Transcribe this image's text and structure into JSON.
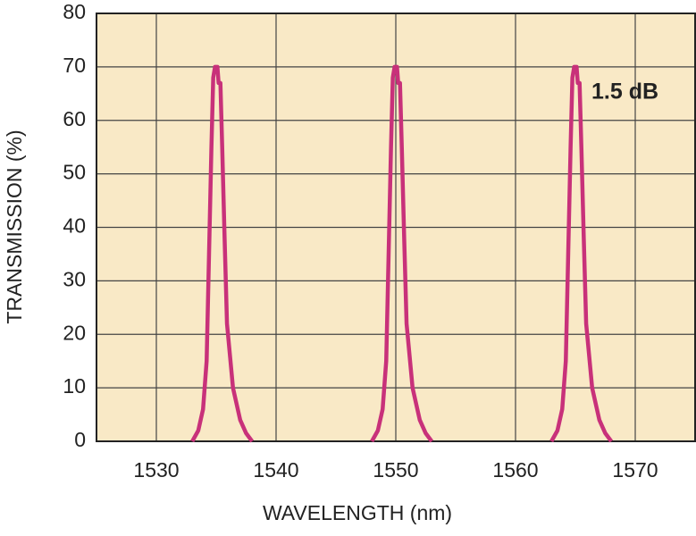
{
  "chart_data": {
    "type": "line",
    "x_label": "WAVELENGTH (nm)",
    "y_label": "TRANSMISSION (%)",
    "annotation": "1.5 dB",
    "xlim": [
      1525,
      1575
    ],
    "xticks": [
      1530,
      1540,
      1550,
      1560,
      1570
    ],
    "ylim": [
      0,
      80
    ],
    "yticks": [
      0,
      10,
      20,
      30,
      40,
      50,
      60,
      70,
      80
    ],
    "grid": true,
    "series": [
      {
        "color": "#c8317a",
        "x": [
          1533.0,
          1533.5,
          1533.9,
          1534.2,
          1534.4,
          1534.6,
          1534.75,
          1534.9,
          1535.1,
          1535.2,
          1535.35,
          1535.5,
          1535.7,
          1535.9,
          1536.4,
          1537.0,
          1537.5,
          1538.0
        ],
        "values": [
          0,
          2,
          6,
          15,
          35,
          55,
          68,
          70,
          70,
          67,
          67,
          55,
          38,
          22,
          10,
          4,
          1.5,
          0
        ]
      },
      {
        "color": "#c8317a",
        "x": [
          1548.0,
          1548.5,
          1548.9,
          1549.2,
          1549.4,
          1549.6,
          1549.75,
          1549.9,
          1550.1,
          1550.2,
          1550.35,
          1550.5,
          1550.7,
          1550.9,
          1551.4,
          1552.0,
          1552.5,
          1553.0
        ],
        "values": [
          0,
          2,
          6,
          15,
          35,
          55,
          68,
          70,
          70,
          67,
          67,
          55,
          38,
          22,
          10,
          4,
          1.5,
          0
        ]
      },
      {
        "color": "#c8317a",
        "x": [
          1563.0,
          1563.5,
          1563.9,
          1564.2,
          1564.4,
          1564.6,
          1564.75,
          1564.9,
          1565.1,
          1565.2,
          1565.35,
          1565.5,
          1565.7,
          1565.9,
          1566.4,
          1567.0,
          1567.5,
          1568.0
        ],
        "values": [
          0,
          2,
          6,
          15,
          35,
          55,
          68,
          70,
          70,
          67,
          67,
          55,
          38,
          22,
          10,
          4,
          1.5,
          0
        ]
      }
    ]
  }
}
